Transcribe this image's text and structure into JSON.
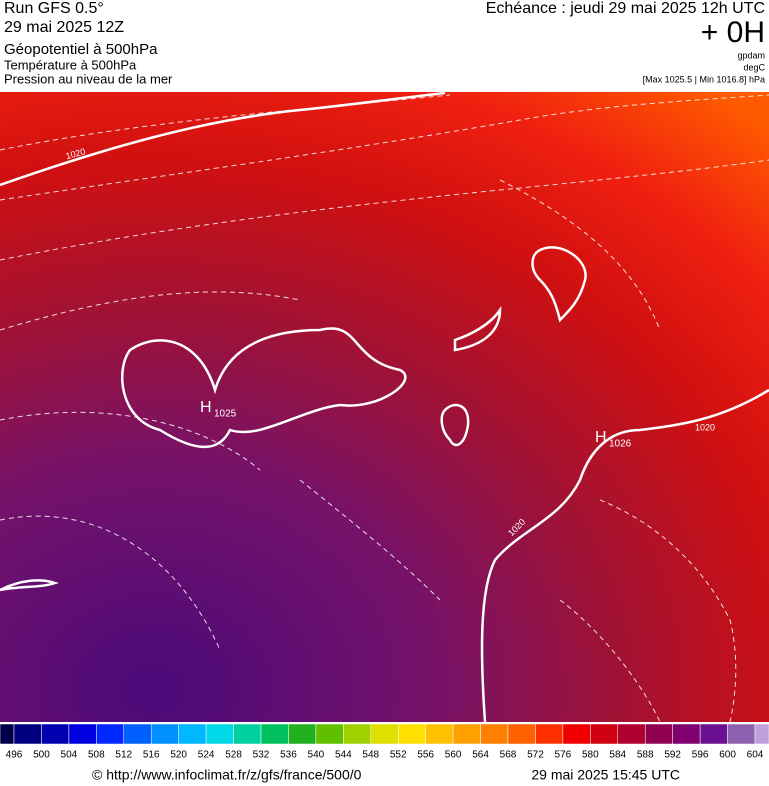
{
  "header": {
    "run": "Run GFS 0.5°",
    "date": "29 mai 2025 12Z",
    "line1": "Géopotentiel à 500hPa",
    "line2": "Température à 500hPa",
    "line3": "Pression au niveau de la mer",
    "echeance": "Echéance : jeudi 29 mai 2025 12h UTC",
    "offset": "+ 0H",
    "unit1": "gpdam",
    "unit2": "degC",
    "range": "[Max 1025.5 | Min 1016.8] hPa"
  },
  "map": {
    "isobar_labels": [
      "1020",
      "1020",
      "1020"
    ],
    "highs": [
      {
        "letter": "H",
        "value": "1025"
      },
      {
        "letter": "H",
        "value": "1026"
      }
    ]
  },
  "scale": {
    "ticks": [
      496,
      500,
      504,
      508,
      512,
      516,
      520,
      524,
      528,
      532,
      536,
      540,
      544,
      548,
      552,
      556,
      560,
      564,
      568,
      572,
      576,
      580,
      584,
      588,
      592,
      596,
      600,
      604
    ],
    "colors": [
      "#00004a",
      "#000080",
      "#0000b0",
      "#0000e0",
      "#0028ff",
      "#0060ff",
      "#0090ff",
      "#00b8ff",
      "#00d8e8",
      "#00d0a0",
      "#00c060",
      "#20b020",
      "#60c000",
      "#a0d000",
      "#e0e000",
      "#ffe000",
      "#ffc000",
      "#ffa000",
      "#ff8000",
      "#ff6000",
      "#ff3000",
      "#f00000",
      "#d00010",
      "#b00030",
      "#900050",
      "#800070",
      "#6a1090",
      "#9060b0",
      "#c0a0d8"
    ]
  },
  "footer": {
    "url": "© http://www.infoclimat.fr/z/gfs/france/500/0",
    "stamp": "29 mai 2025 15:45 UTC"
  }
}
